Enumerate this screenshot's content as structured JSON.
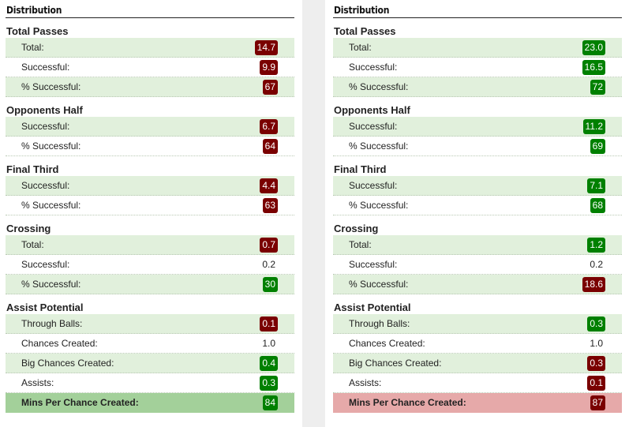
{
  "colors": {
    "bad": "#7a0000",
    "good": "#008000",
    "shade": "#e1f0dc",
    "summary_good": "#a3d09a",
    "summary_bad": "#e6a9a9"
  },
  "left": {
    "title": "Distribution",
    "sections": [
      {
        "title": "Total Passes",
        "rows": [
          {
            "label": "Total:",
            "value": "14.7"
          },
          {
            "label": "Successful:",
            "value": "9.9"
          },
          {
            "label": "% Successful:",
            "value": "67"
          }
        ]
      },
      {
        "title": "Opponents Half",
        "rows": [
          {
            "label": "Successful:",
            "value": "6.7"
          },
          {
            "label": "% Successful:",
            "value": "64"
          }
        ]
      },
      {
        "title": "Final Third",
        "rows": [
          {
            "label": "Successful:",
            "value": "4.4"
          },
          {
            "label": "% Successful:",
            "value": "63"
          }
        ]
      },
      {
        "title": "Crossing",
        "rows": [
          {
            "label": "Total:",
            "value": "0.7"
          },
          {
            "label": "Successful:",
            "value": "0.2"
          },
          {
            "label": "% Successful:",
            "value": "30"
          }
        ]
      },
      {
        "title": "Assist Potential",
        "rows": [
          {
            "label": "Through Balls:",
            "value": "0.1"
          },
          {
            "label": "Chances Created:",
            "value": "1.0"
          },
          {
            "label": "Big Chances Created:",
            "value": "0.4"
          },
          {
            "label": "Assists:",
            "value": "0.3"
          },
          {
            "label": "Mins Per Chance Created:",
            "value": "84"
          }
        ]
      }
    ]
  },
  "right": {
    "title": "Distribution",
    "sections": [
      {
        "title": "Total Passes",
        "rows": [
          {
            "label": "Total:",
            "value": "23.0"
          },
          {
            "label": "Successful:",
            "value": "16.5"
          },
          {
            "label": "% Successful:",
            "value": "72"
          }
        ]
      },
      {
        "title": "Opponents Half",
        "rows": [
          {
            "label": "Successful:",
            "value": "11.2"
          },
          {
            "label": "% Successful:",
            "value": "69"
          }
        ]
      },
      {
        "title": "Final Third",
        "rows": [
          {
            "label": "Successful:",
            "value": "7.1"
          },
          {
            "label": "% Successful:",
            "value": "68"
          }
        ]
      },
      {
        "title": "Crossing",
        "rows": [
          {
            "label": "Total:",
            "value": "1.2"
          },
          {
            "label": "Successful:",
            "value": "0.2"
          },
          {
            "label": "% Successful:",
            "value": "18.6"
          }
        ]
      },
      {
        "title": "Assist Potential",
        "rows": [
          {
            "label": "Through Balls:",
            "value": "0.3"
          },
          {
            "label": "Chances Created:",
            "value": "1.0"
          },
          {
            "label": "Big Chances Created:",
            "value": "0.3"
          },
          {
            "label": "Assists:",
            "value": "0.1"
          },
          {
            "label": "Mins Per Chance Created:",
            "value": "87"
          }
        ]
      }
    ]
  }
}
